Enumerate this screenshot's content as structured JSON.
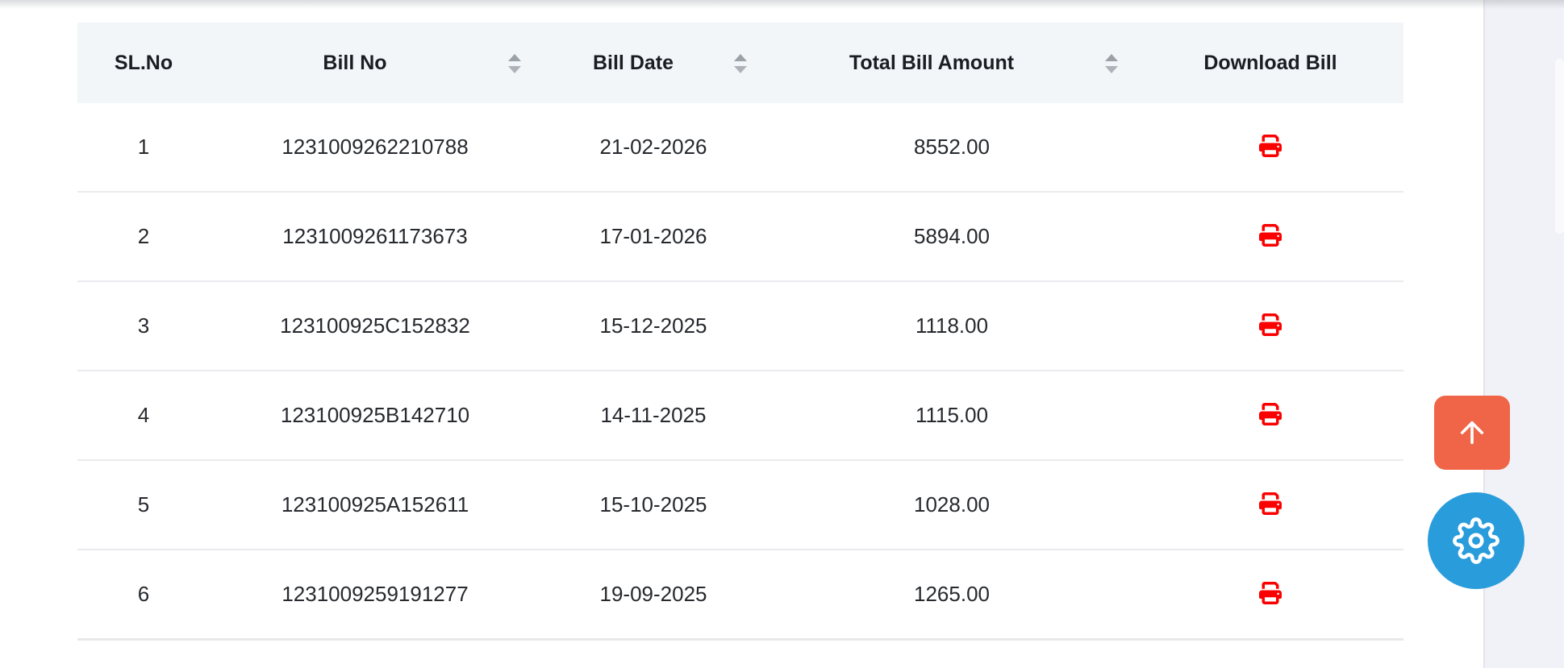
{
  "table": {
    "columns": [
      {
        "id": "sl_no",
        "label": "SL.No",
        "sortable": false
      },
      {
        "id": "bill_no",
        "label": "Bill No",
        "sortable": true
      },
      {
        "id": "bill_date",
        "label": "Bill Date",
        "sortable": true
      },
      {
        "id": "total_bill_amount",
        "label": "Total Bill Amount",
        "sortable": true
      },
      {
        "id": "download_bill",
        "label": "Download Bill",
        "sortable": false
      }
    ],
    "rows": [
      {
        "sl_no": "1",
        "bill_no": "1231009262210788",
        "bill_date": "21-02-2026",
        "total_bill_amount": "8552.00"
      },
      {
        "sl_no": "2",
        "bill_no": "1231009261173673",
        "bill_date": "17-01-2026",
        "total_bill_amount": "5894.00"
      },
      {
        "sl_no": "3",
        "bill_no": "123100925C152832",
        "bill_date": "15-12-2025",
        "total_bill_amount": "1118.00"
      },
      {
        "sl_no": "4",
        "bill_no": "123100925B142710",
        "bill_date": "14-11-2025",
        "total_bill_amount": "1115.00"
      },
      {
        "sl_no": "5",
        "bill_no": "123100925A152611",
        "bill_date": "15-10-2025",
        "total_bill_amount": "1028.00"
      },
      {
        "sl_no": "6",
        "bill_no": "1231009259191277",
        "bill_date": "19-09-2025",
        "total_bill_amount": "1265.00"
      }
    ]
  },
  "icons": {
    "download": "printer-icon",
    "sort": "sort-arrows-icon",
    "back_to_top": "arrow-up-icon",
    "customizer": "gear-icon"
  },
  "colors": {
    "download_icon": "#fb0000",
    "back_to_top_button": "#f06548",
    "customizer_button": "#299cdb",
    "header_background": "#f3f6f9",
    "row_border": "#e9ebee",
    "right_rail_background": "#f1f2f7"
  }
}
